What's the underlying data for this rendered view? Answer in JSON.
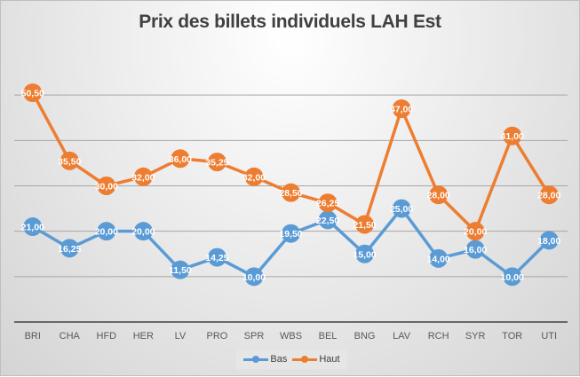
{
  "chart_data": {
    "type": "line",
    "title": "Prix des billets individuels LAH Est",
    "categories": [
      "BRI",
      "CHA",
      "HFD",
      "HER",
      "LV",
      "PRO",
      "SPR",
      "WBS",
      "BEL",
      "BNG",
      "LAV",
      "RCH",
      "SYR",
      "TOR",
      "UTI"
    ],
    "series": [
      {
        "name": "Bas",
        "color": "#5b9bd5",
        "values": [
          21.0,
          16.25,
          20.0,
          20.0,
          11.5,
          14.25,
          10.0,
          19.5,
          22.5,
          15.0,
          25.0,
          14.0,
          16.0,
          10.0,
          18.0
        ],
        "labels": [
          "21,00",
          "16,25",
          "20,00",
          "20,00",
          "11,50",
          "14,25",
          "10,00",
          "19,50",
          "22,50",
          "15,00",
          "25,00",
          "14,00",
          "16,00",
          "10,00",
          "18,00"
        ]
      },
      {
        "name": "Haut",
        "color": "#ed7d31",
        "values": [
          50.5,
          35.5,
          30.0,
          32.0,
          36.0,
          35.25,
          32.0,
          28.5,
          26.25,
          21.5,
          47.0,
          28.0,
          20.0,
          41.0,
          28.0
        ],
        "labels": [
          "50,50",
          "35,50",
          "30,00",
          "32,00",
          "36,00",
          "35,25",
          "32,00",
          "28,50",
          "26,25",
          "21,50",
          "47,00",
          "28,00",
          "20,00",
          "41,00",
          "28,00"
        ]
      }
    ],
    "ylim": [
      0,
      60
    ],
    "ygrid_step": 10,
    "y_tick_labels_shown": false,
    "grid": true,
    "legend": "bottom"
  }
}
